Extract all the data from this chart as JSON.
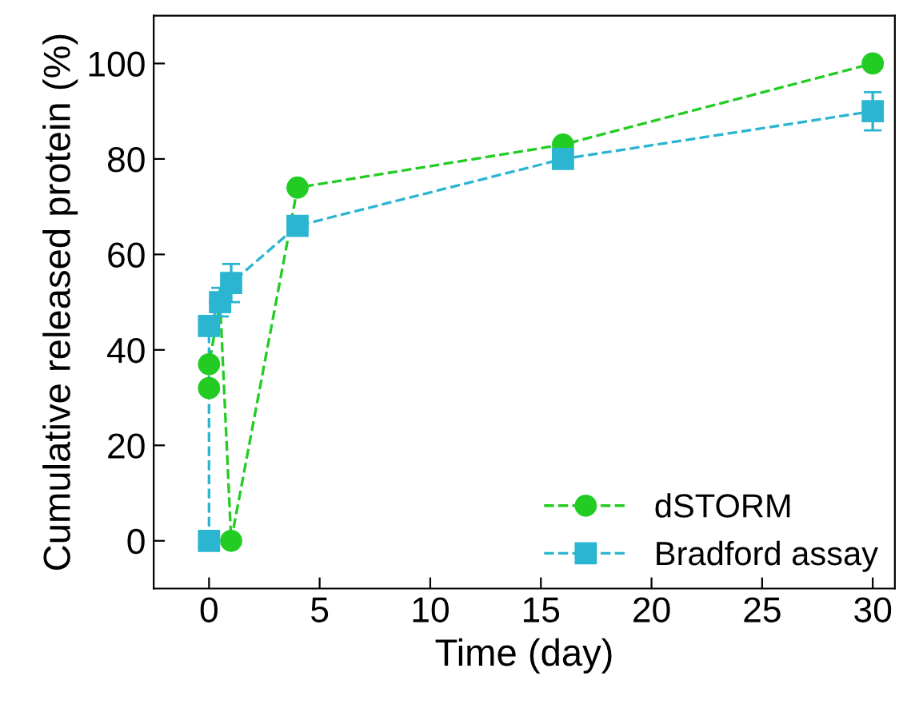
{
  "chart_data": {
    "type": "line",
    "xlabel": "Time (day)",
    "ylabel": "Cumulative released protein (%)",
    "xlim": [
      -2.5,
      31
    ],
    "xticks": [
      0,
      5,
      10,
      15,
      20,
      25,
      30
    ],
    "ylim": [
      -10,
      110
    ],
    "yticks": [
      0,
      20,
      40,
      60,
      80,
      100
    ],
    "legend": "bottom right",
    "line_style": "dashed",
    "grid": false,
    "series": [
      {
        "name": "dSTORM",
        "color": "#22cc22",
        "marker": "circle",
        "x": [
          0,
          0,
          0.5,
          1,
          4,
          16,
          30
        ],
        "values": [
          32,
          37,
          50,
          0,
          74,
          83,
          100
        ]
      },
      {
        "name": "Bradford assay",
        "color": "#2bb5d0",
        "marker": "square",
        "x": [
          0,
          0,
          0.5,
          1,
          4,
          16,
          30
        ],
        "values": [
          0,
          45,
          50,
          54,
          66,
          80,
          90
        ],
        "errors": [
          null,
          2,
          3,
          4,
          2,
          2,
          4
        ]
      }
    ]
  }
}
